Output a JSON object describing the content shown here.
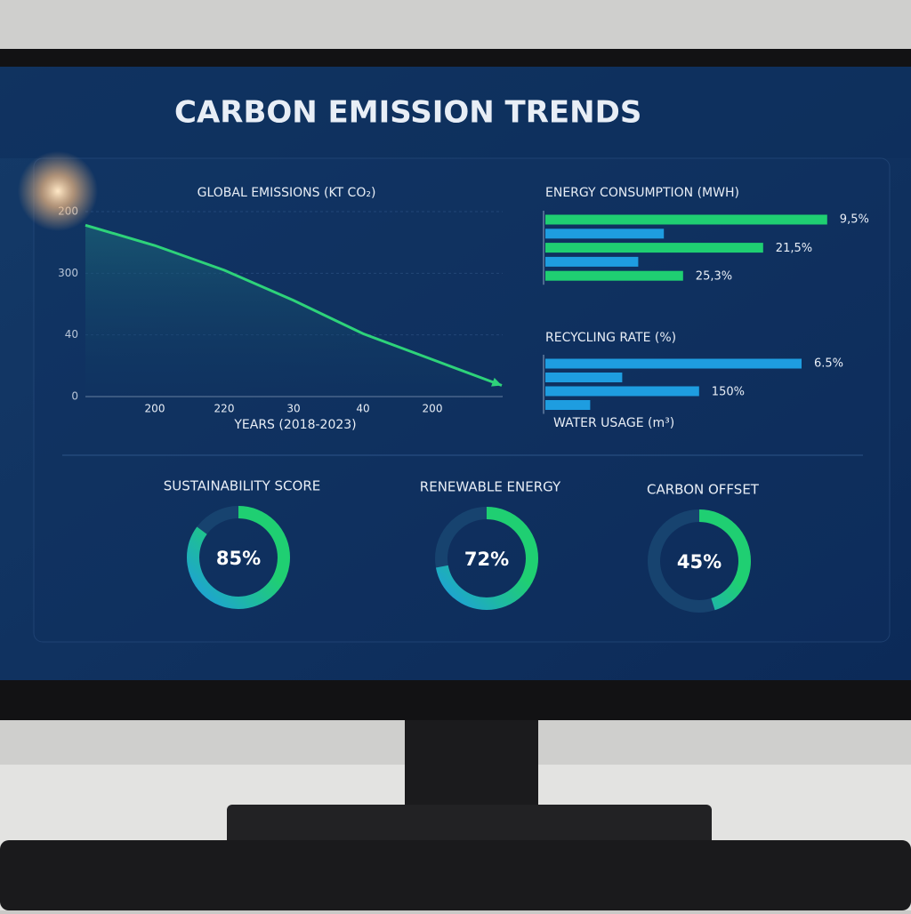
{
  "title": "CARBON EMISSION TRENDS",
  "chart_data": [
    {
      "type": "line",
      "title": "GLOBAL EMISSIONS (KT CO₂)",
      "x_label": "YEARS (2018-2023)",
      "categories": [
        null,
        "200",
        "220",
        "30",
        "40",
        "200",
        null
      ],
      "values": [
        278,
        245,
        205,
        156,
        102,
        60,
        18
      ],
      "ylim": [
        0,
        300
      ],
      "y_labels": [
        "200",
        "300",
        "40",
        "0"
      ],
      "color": "#2ed37a",
      "grid": true
    },
    {
      "type": "hbar",
      "title": "ENERGY CONSUMPTION (MWH)",
      "values": [
        88,
        37,
        68,
        29,
        43
      ],
      "xlim": [
        0,
        100
      ],
      "colors": [
        "#1fcf72",
        "#1e9de0",
        "#1fcf72",
        "#1e9de0",
        "#1fcf72"
      ],
      "annotations": [
        "9,5%",
        "21,5%",
        "25,3%"
      ]
    },
    {
      "type": "hbar",
      "title": "RECYCLING RATE (%)",
      "x_label": "WATER USAGE (m³)",
      "values": [
        80,
        24,
        48,
        14
      ],
      "xlim": [
        0,
        100
      ],
      "colors": [
        "#1e9de0",
        "#1e9de0",
        "#1e9de0",
        "#1e9de0"
      ],
      "annotations": [
        "6.5%",
        "150%"
      ]
    },
    {
      "type": "donut",
      "title": "SUSTAINABILITY SCORE",
      "values": [
        85
      ],
      "value_labels": [
        "85%"
      ],
      "ylim": [
        0,
        100
      ]
    },
    {
      "type": "donut",
      "title": "RENEWABLE ENERGY",
      "values": [
        72
      ],
      "value_labels": [
        "72%"
      ],
      "ylim": [
        0,
        100
      ]
    },
    {
      "type": "donut",
      "title": "CARBON OFFSET",
      "values": [
        45
      ],
      "value_labels": [
        "45%"
      ],
      "ylim": [
        0,
        100
      ]
    }
  ]
}
